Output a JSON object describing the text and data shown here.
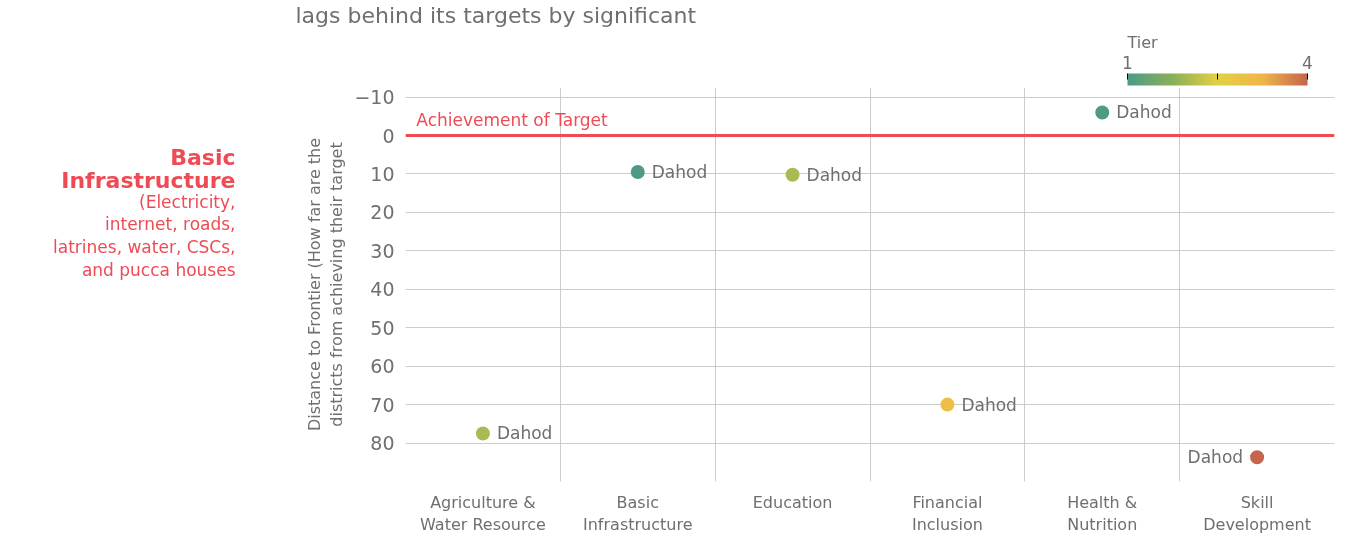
{
  "chart_data": {
    "type": "scatter",
    "title": "lags behind its targets by significant",
    "ylabel": "Distance to Frontier (How far are the districts from achieving their target",
    "legend_title": "Tier",
    "categories": [
      "Agriculture & Water Resource",
      "Basic Infrastructure",
      "Education",
      "Financial Inclusion",
      "Health & Nutrition",
      "Skill Development"
    ],
    "values": [
      77.5,
      9.5,
      10.2,
      70,
      -6,
      83.7
    ],
    "cvalues": [
      2,
      1,
      2,
      3,
      1,
      4
    ],
    "clim": [
      1,
      4
    ],
    "cticks": [
      1,
      {
        "value": 2.5,
        "label": null
      },
      4
    ],
    "ylim": [
      90,
      -12.5
    ],
    "yticks": [
      -10,
      0,
      10,
      20,
      30,
      40,
      50,
      60,
      70,
      80
    ],
    "grid": true,
    "marker": "circle",
    "ref_lines": [
      {
        "axis": "y",
        "value": 0,
        "label": "Achievement of Target",
        "color": "#ee4b55"
      }
    ],
    "annotations": [
      {
        "text": "Dahod",
        "x": "Agriculture & Water Resource",
        "y": 77.5
      },
      {
        "text": "Dahod",
        "x": "Basic Infrastructure",
        "y": 9.5
      },
      {
        "text": "Dahod",
        "x": "Education",
        "y": 10.2
      },
      {
        "text": "Dahod",
        "x": "Financial Inclusion",
        "y": 70
      },
      {
        "text": "Dahod",
        "x": "Health & Nutrition",
        "y": -6
      },
      {
        "text": "Dahod",
        "x": "Skill Development",
        "y": 83.7
      },
      "Basic Infrastructure",
      "(Electricity, internet, roads, latrines, water, CSCs, and pucca houses"
    ]
  }
}
